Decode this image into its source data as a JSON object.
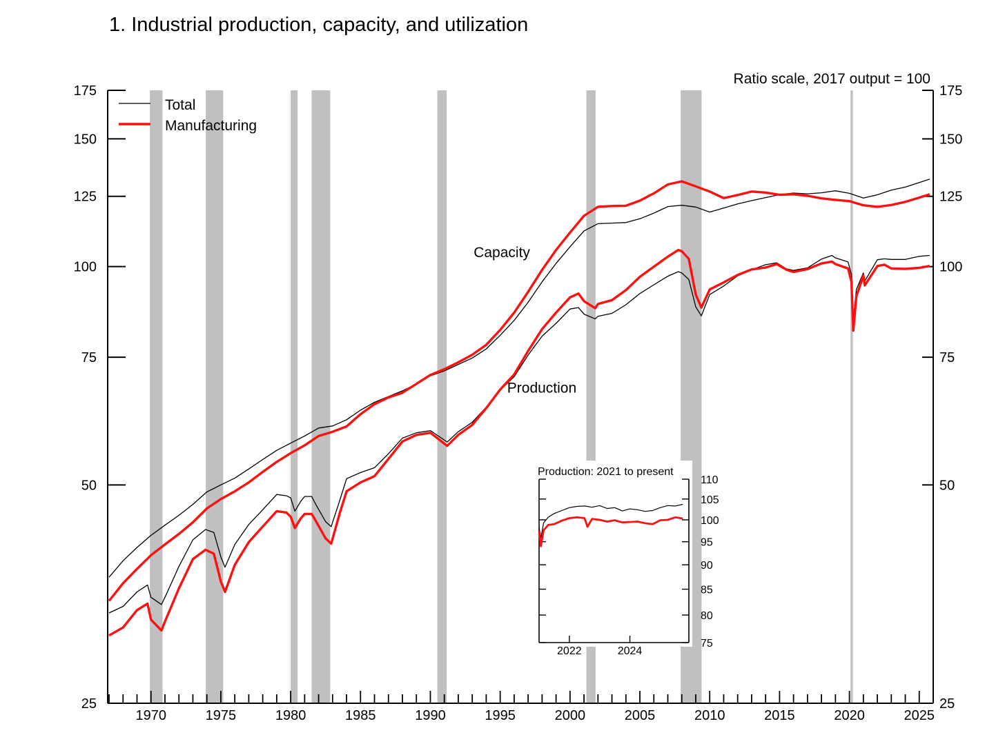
{
  "chart_data": [
    {
      "type": "line",
      "title": "1.  Industrial production, capacity, and utilization",
      "scale_note": "Ratio scale, 2017 output = 100",
      "y_scale": "log",
      "ylim": [
        25,
        175
      ],
      "xlim": [
        1966.9,
        2026.0
      ],
      "yticks": [
        25,
        50,
        75,
        100,
        125,
        150,
        175
      ],
      "xtick_labels": [
        "1970",
        "1975",
        "1980",
        "1985",
        "1990",
        "1995",
        "2000",
        "2005",
        "2010",
        "2015",
        "2020",
        "2025"
      ],
      "xtick_values": [
        1970,
        1975,
        1980,
        1985,
        1990,
        1995,
        2000,
        2005,
        2010,
        2015,
        2020,
        2025
      ],
      "annotations": [
        {
          "text": "Capacity",
          "x": 1993.1,
          "y": 103
        },
        {
          "text": "Production",
          "x": 1995.5,
          "y": 67
        }
      ],
      "recessions": [
        [
          1969.92,
          1970.83
        ],
        [
          1973.92,
          1975.17
        ],
        [
          1980.0,
          1980.5
        ],
        [
          1981.5,
          1982.83
        ],
        [
          1990.5,
          1991.17
        ],
        [
          2001.17,
          2001.83
        ],
        [
          2007.92,
          2009.42
        ],
        [
          2020.08,
          2020.25
        ]
      ],
      "legend": {
        "placement": "top-left",
        "entries": [
          {
            "name": "Total",
            "color": "#000000"
          },
          {
            "name": "Manufacturing",
            "color": "#ff1010"
          }
        ]
      },
      "series": [
        {
          "name": "Total",
          "role": "capacity",
          "color": "#000000",
          "x": [
            1967,
            1968,
            1969,
            1970,
            1971,
            1972,
            1973,
            1974,
            1975,
            1976,
            1977,
            1978,
            1979,
            1980,
            1981,
            1982,
            1983,
            1984,
            1985,
            1986,
            1987,
            1988,
            1989,
            1990,
            1991,
            1992,
            1993,
            1994,
            1995,
            1996,
            1997,
            1998,
            1999,
            2000,
            2001,
            2002,
            2003,
            2004,
            2005,
            2006,
            2007,
            2008,
            2009,
            2010,
            2011,
            2012,
            2013,
            2014,
            2015,
            2016,
            2017,
            2018,
            2019,
            2020,
            2021,
            2022,
            2023,
            2024,
            2025,
            2025.75
          ],
          "y": [
            37.3,
            39.3,
            41.0,
            42.6,
            44.0,
            45.4,
            47.0,
            48.9,
            50.0,
            51.1,
            52.6,
            54.2,
            55.8,
            57.1,
            58.4,
            59.9,
            60.3,
            61.5,
            63.4,
            65.0,
            66.2,
            67.4,
            68.9,
            70.7,
            71.8,
            73.3,
            74.8,
            77.0,
            80.4,
            84.3,
            89.3,
            95.3,
            101.0,
            106.5,
            112.0,
            114.6,
            114.8,
            115.0,
            116.4,
            118.5,
            121.0,
            121.5,
            120.8,
            118.9,
            120.4,
            122.0,
            123.3,
            124.5,
            125.7,
            126.3,
            126.0,
            126.4,
            127.2,
            126.2,
            124.3,
            125.6,
            127.5,
            128.7,
            130.6,
            132.0
          ]
        },
        {
          "name": "Manufacturing",
          "role": "capacity",
          "color": "#ff1010",
          "x": [
            1967,
            1968,
            1969,
            1970,
            1971,
            1972,
            1973,
            1974,
            1975,
            1976,
            1977,
            1978,
            1979,
            1980,
            1981,
            1982,
            1983,
            1984,
            1985,
            1986,
            1987,
            1988,
            1989,
            1990,
            1991,
            1992,
            1993,
            1994,
            1995,
            1996,
            1997,
            1998,
            1999,
            2000,
            2001,
            2002,
            2003,
            2004,
            2005,
            2006,
            2007,
            2008,
            2009,
            2010,
            2011,
            2012,
            2013,
            2014,
            2015,
            2016,
            2017,
            2018,
            2019,
            2020,
            2021,
            2022,
            2023,
            2024,
            2025,
            2025.75
          ],
          "y": [
            34.6,
            36.6,
            38.3,
            40.0,
            41.4,
            42.8,
            44.4,
            46.4,
            47.8,
            49.0,
            50.4,
            52.1,
            53.8,
            55.3,
            56.7,
            58.4,
            59.2,
            60.2,
            62.6,
            64.6,
            66.0,
            67.0,
            68.9,
            70.9,
            72.2,
            73.8,
            75.6,
            78.0,
            81.8,
            86.4,
            92.3,
            99.0,
            105.4,
            111.4,
            117.5,
            120.9,
            121.2,
            121.3,
            123.3,
            126.2,
            129.8,
            131.1,
            129.0,
            126.9,
            124.3,
            125.5,
            126.9,
            126.5,
            125.6,
            125.8,
            125.2,
            124.2,
            123.6,
            123.1,
            121.5,
            120.9,
            121.6,
            122.8,
            124.5,
            125.8
          ]
        },
        {
          "name": "Total",
          "role": "production",
          "color": "#000000",
          "x": [
            1967,
            1968,
            1969,
            1969.75,
            1970,
            1970.75,
            1971,
            1972,
            1973,
            1973.9,
            1974.5,
            1975.0,
            1975.3,
            1976,
            1977,
            1978,
            1979.0,
            1979.7,
            1980.0,
            1980.3,
            1980.7,
            1981.0,
            1981.5,
            1981.8,
            1982.5,
            1982.9,
            1983.5,
            1984.0,
            1985,
            1986,
            1987,
            1988,
            1989,
            1990,
            1990.8,
            1991.2,
            1992,
            1993,
            1994,
            1995,
            1996,
            1997,
            1998,
            1999,
            2000,
            2000.6,
            2001,
            2001.8,
            2002,
            2003,
            2004,
            2005,
            2006,
            2007,
            2007.75,
            2008,
            2008.5,
            2009.0,
            2009.4,
            2010,
            2011,
            2012,
            2013,
            2014,
            2014.8,
            2015.5,
            2016,
            2017,
            2018,
            2018.75,
            2019,
            2019.9,
            2020.15,
            2020.28,
            2020.5,
            2021,
            2021.1,
            2022,
            2022.5,
            2023,
            2024,
            2025,
            2025.5,
            2025.75
          ],
          "y": [
            33.3,
            34.0,
            35.6,
            36.4,
            35.0,
            34.2,
            35.0,
            38.6,
            42.0,
            43.4,
            43.0,
            39.8,
            38.5,
            41.4,
            44.1,
            46.2,
            48.5,
            48.3,
            48.0,
            46.0,
            47.4,
            48.2,
            48.2,
            47.0,
            44.5,
            43.8,
            47.5,
            51.0,
            52.0,
            52.8,
            55.2,
            58.0,
            59.0,
            59.4,
            58.0,
            57.3,
            59.2,
            61.0,
            64.0,
            67.6,
            70.5,
            75.5,
            80.2,
            83.5,
            87.4,
            87.8,
            86.0,
            84.7,
            85.4,
            86.2,
            88.6,
            91.8,
            94.4,
            97.0,
            98.4,
            98.0,
            96.0,
            88.0,
            85.5,
            91.5,
            94.0,
            97.1,
            99.0,
            100.6,
            101.2,
            99.3,
            98.8,
            99.6,
            102.4,
            103.6,
            102.8,
            101.5,
            97.5,
            84.5,
            93.0,
            98.0,
            95.5,
            102.2,
            102.5,
            102.3,
            102.3,
            103.3,
            103.5,
            103.6
          ]
        },
        {
          "name": "Manufacturing",
          "role": "production",
          "color": "#ff1010",
          "x": [
            1967,
            1968,
            1969,
            1969.75,
            1970,
            1970.75,
            1971,
            1972,
            1973,
            1973.9,
            1974.5,
            1975.0,
            1975.3,
            1976,
            1977,
            1978,
            1979.0,
            1979.7,
            1980.0,
            1980.3,
            1980.7,
            1981.0,
            1981.5,
            1981.8,
            1982.5,
            1982.9,
            1983.5,
            1984.0,
            1985,
            1986,
            1987,
            1988,
            1989,
            1990,
            1990.8,
            1991.2,
            1992,
            1993,
            1994,
            1995,
            1996,
            1997,
            1998,
            1999,
            2000,
            2000.6,
            2001,
            2001.8,
            2002,
            2003,
            2004,
            2005,
            2006,
            2007,
            2007.75,
            2008,
            2008.5,
            2009.0,
            2009.4,
            2010,
            2011,
            2012,
            2013,
            2014,
            2014.8,
            2015.5,
            2016,
            2017,
            2018,
            2018.75,
            2019,
            2019.9,
            2020.15,
            2020.28,
            2020.5,
            2021,
            2021.1,
            2022,
            2022.5,
            2023,
            2024,
            2025,
            2025.5,
            2025.75
          ],
          "y": [
            31.0,
            31.8,
            33.6,
            34.3,
            32.6,
            31.5,
            32.4,
            36.0,
            39.5,
            40.7,
            40.2,
            36.8,
            35.6,
            38.8,
            41.7,
            43.8,
            46.0,
            45.8,
            45.2,
            43.6,
            44.9,
            45.6,
            45.6,
            44.6,
            42.2,
            41.5,
            45.6,
            49.0,
            50.4,
            51.4,
            54.3,
            57.4,
            58.6,
            59.0,
            57.4,
            56.6,
            58.6,
            60.5,
            63.8,
            67.7,
            71.0,
            76.5,
            82.0,
            86.4,
            90.7,
            91.8,
            89.6,
            87.6,
            88.8,
            89.9,
            92.8,
            96.8,
            100.0,
            103.2,
            105.4,
            105.0,
            102.5,
            91.5,
            87.8,
            93.0,
            95.1,
            97.4,
            99.1,
            99.7,
            100.8,
            99.0,
            98.3,
            99.2,
            101.0,
            101.6,
            100.8,
            99.4,
            95.3,
            81.6,
            91.0,
            97.2,
            94.2,
            100.2,
            100.6,
            99.4,
            99.3,
            99.6,
            100.0,
            100.2
          ]
        }
      ]
    },
    {
      "type": "line",
      "title": "Production: 2021 to present",
      "y_scale": "log",
      "ylim": [
        75,
        110
      ],
      "xlim": [
        2021.0,
        2025.95
      ],
      "yticks": [
        75,
        80,
        85,
        90,
        95,
        100,
        105,
        110
      ],
      "xtick_labels": [
        "2022",
        "2024"
      ],
      "xtick_values": [
        2022,
        2024
      ],
      "series": [
        {
          "name": "Total",
          "color": "#000000",
          "x": [
            2021.0,
            2021.06,
            2021.15,
            2021.3,
            2021.5,
            2021.75,
            2022.0,
            2022.25,
            2022.5,
            2022.75,
            2023.0,
            2023.25,
            2023.5,
            2023.75,
            2024.0,
            2024.25,
            2024.5,
            2024.75,
            2025.0,
            2025.25,
            2025.5,
            2025.75
          ],
          "y": [
            98.3,
            95.8,
            99.3,
            100.6,
            101.5,
            102.2,
            102.9,
            103.2,
            103.3,
            103.0,
            103.4,
            102.7,
            102.9,
            102.1,
            102.6,
            102.4,
            102.0,
            102.2,
            102.9,
            103.4,
            103.3,
            103.7
          ]
        },
        {
          "name": "Manufacturing",
          "color": "#ff1010",
          "x": [
            2021.0,
            2021.06,
            2021.15,
            2021.3,
            2021.5,
            2021.75,
            2022.0,
            2022.25,
            2022.5,
            2022.6,
            2022.75,
            2023.0,
            2023.25,
            2023.5,
            2023.75,
            2024.0,
            2024.25,
            2024.5,
            2024.75,
            2025.0,
            2025.25,
            2025.5,
            2025.75
          ],
          "y": [
            97.4,
            94.0,
            97.6,
            98.8,
            99.0,
            99.8,
            100.4,
            100.6,
            100.4,
            98.4,
            100.2,
            100.0,
            99.6,
            99.9,
            99.4,
            99.5,
            99.6,
            99.2,
            99.0,
            99.9,
            100.0,
            100.6,
            100.3
          ]
        }
      ]
    }
  ]
}
